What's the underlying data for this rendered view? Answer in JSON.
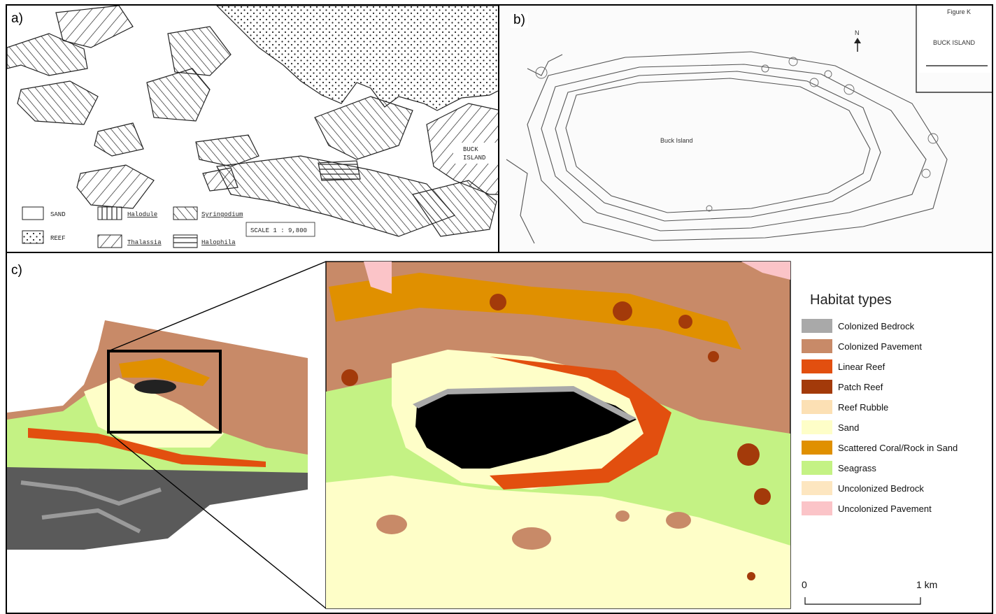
{
  "panels": {
    "a": {
      "label": "a)",
      "island_label": "BUCK ISLAND",
      "scale_text": "SCALE 1 : 9,800",
      "legend": [
        {
          "label": "SAND",
          "pattern": "blank"
        },
        {
          "label": "REEF",
          "pattern": "reef"
        },
        {
          "label": "Halodule",
          "pattern": "vertical"
        },
        {
          "label": "Thalassia",
          "pattern": "diag-right"
        },
        {
          "label": "Syringodium",
          "pattern": "diag-left"
        },
        {
          "label": "Halophila",
          "pattern": "horizontal"
        }
      ]
    },
    "b": {
      "label": "b)",
      "figure_title": "Figure K",
      "island_title": "BUCK ISLAND",
      "north": "N",
      "island_text": "Buck Island"
    },
    "c": {
      "label": "c)",
      "legend_title": "Habitat types",
      "legend": [
        {
          "label": "Colonized Bedrock",
          "color": "#a9a9a9"
        },
        {
          "label": "Colonized Pavement",
          "color": "#c88a68"
        },
        {
          "label": "Linear Reef",
          "color": "#e24f0f"
        },
        {
          "label": "Patch Reef",
          "color": "#a33a0a"
        },
        {
          "label": "Reef Rubble",
          "color": "#fce0b4"
        },
        {
          "label": "Sand",
          "color": "#fefec8"
        },
        {
          "label": "Scattered Coral/Rock in Sand",
          "color": "#e09000"
        },
        {
          "label": "Seagrass",
          "color": "#c4f284"
        },
        {
          "label": "Uncolonized Bedrock",
          "color": "#fde6c0"
        },
        {
          "label": "Uncolonized Pavement",
          "color": "#fbc4c8"
        }
      ],
      "scale_start": "0",
      "scale_end": "1 km"
    }
  }
}
